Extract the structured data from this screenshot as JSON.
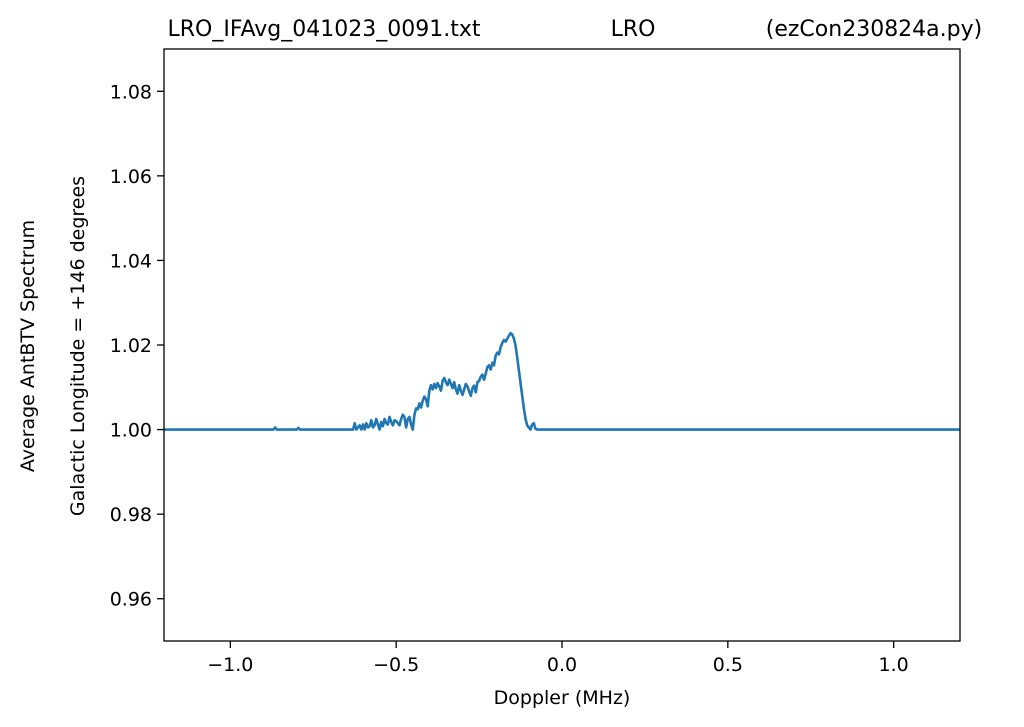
{
  "chart_data": {
    "type": "line",
    "title_parts": [
      "LRO_IFAvg_041023_0091.txt",
      "LRO",
      "(ezCon230824a.py)"
    ],
    "xlabel": "Doppler (MHz)",
    "ylabel_lines": [
      "Average AntBTV Spectrum",
      "Galactic Longitude = +146 degrees"
    ],
    "xlim": [
      -1.2,
      1.2
    ],
    "ylim": [
      0.95,
      1.09
    ],
    "xticks": [
      -1.0,
      -0.5,
      0.0,
      0.5,
      1.0
    ],
    "xtick_labels": [
      "−1.0",
      "−0.5",
      "0.0",
      "0.5",
      "1.0"
    ],
    "yticks": [
      0.96,
      0.98,
      1.0,
      1.02,
      1.04,
      1.06,
      1.08
    ],
    "ytick_labels": [
      "0.96",
      "0.98",
      "1.00",
      "1.02",
      "1.04",
      "1.06",
      "1.08"
    ],
    "grid": false,
    "series": [
      {
        "color": "#1f77b4",
        "x": [
          -1.2,
          -0.87,
          -0.865,
          -0.86,
          -0.82,
          -0.8,
          -0.795,
          -0.79,
          -0.63,
          -0.625,
          -0.62,
          -0.615,
          -0.61,
          -0.605,
          -0.6,
          -0.595,
          -0.59,
          -0.585,
          -0.58,
          -0.575,
          -0.57,
          -0.565,
          -0.56,
          -0.555,
          -0.55,
          -0.545,
          -0.54,
          -0.535,
          -0.53,
          -0.525,
          -0.52,
          -0.515,
          -0.51,
          -0.505,
          -0.5,
          -0.495,
          -0.49,
          -0.485,
          -0.48,
          -0.475,
          -0.47,
          -0.465,
          -0.46,
          -0.455,
          -0.45,
          -0.445,
          -0.44,
          -0.435,
          -0.43,
          -0.425,
          -0.42,
          -0.415,
          -0.41,
          -0.405,
          -0.4,
          -0.395,
          -0.39,
          -0.385,
          -0.38,
          -0.375,
          -0.37,
          -0.365,
          -0.36,
          -0.355,
          -0.35,
          -0.345,
          -0.34,
          -0.335,
          -0.33,
          -0.325,
          -0.32,
          -0.315,
          -0.31,
          -0.305,
          -0.3,
          -0.295,
          -0.29,
          -0.285,
          -0.28,
          -0.275,
          -0.27,
          -0.265,
          -0.26,
          -0.255,
          -0.25,
          -0.245,
          -0.24,
          -0.235,
          -0.23,
          -0.225,
          -0.22,
          -0.215,
          -0.21,
          -0.205,
          -0.2,
          -0.195,
          -0.19,
          -0.185,
          -0.18,
          -0.175,
          -0.17,
          -0.165,
          -0.16,
          -0.155,
          -0.15,
          -0.145,
          -0.14,
          -0.135,
          -0.13,
          -0.125,
          -0.12,
          -0.115,
          -0.11,
          -0.105,
          -0.1,
          -0.095,
          -0.09,
          -0.085,
          -0.08,
          -0.075,
          -0.07,
          -0.065,
          -0.06,
          1.2
        ],
        "y": [
          1.0,
          1.0,
          1.0005,
          1.0,
          1.0,
          1.0,
          1.0004,
          1.0,
          1.0,
          1.0015,
          1.0,
          1.0005,
          1.001,
          1.0,
          1.0012,
          1.0,
          1.0015,
          1.0005,
          1.0008,
          1.0022,
          1.0005,
          1.001,
          1.0025,
          1.0012,
          1.0,
          1.0018,
          1.0008,
          1.0025,
          1.0015,
          1.0012,
          1.003,
          1.0018,
          1.001,
          1.0022,
          1.002,
          1.0015,
          1.001,
          1.0025,
          1.0035,
          1.003,
          1.0005,
          1.0025,
          1.003,
          1.0012,
          1.0,
          1.0035,
          1.005,
          1.0048,
          1.0062,
          1.0052,
          1.0068,
          1.0078,
          1.0072,
          1.0055,
          1.0092,
          1.0105,
          1.0095,
          1.0108,
          1.0098,
          1.011,
          1.0102,
          1.0092,
          1.0115,
          1.0122,
          1.0112,
          1.0105,
          1.0118,
          1.0108,
          1.0098,
          1.0112,
          1.0095,
          1.0085,
          1.0105,
          1.0092,
          1.0082,
          1.0095,
          1.0108,
          1.0102,
          1.009,
          1.008,
          1.0098,
          1.0104,
          1.0088,
          1.0112,
          1.0115,
          1.0125,
          1.013,
          1.0118,
          1.0132,
          1.0148,
          1.0152,
          1.0142,
          1.0158,
          1.0152,
          1.0175,
          1.0182,
          1.0178,
          1.0195,
          1.0205,
          1.0212,
          1.0208,
          1.0215,
          1.0222,
          1.0228,
          1.0225,
          1.0215,
          1.0198,
          1.017,
          1.014,
          1.011,
          1.008,
          1.005,
          1.0025,
          1.001,
          1.0005,
          1.0,
          1.0012,
          1.0015,
          1.0002,
          1.0,
          1.0,
          1.0,
          1.0,
          1.0
        ]
      }
    ]
  }
}
